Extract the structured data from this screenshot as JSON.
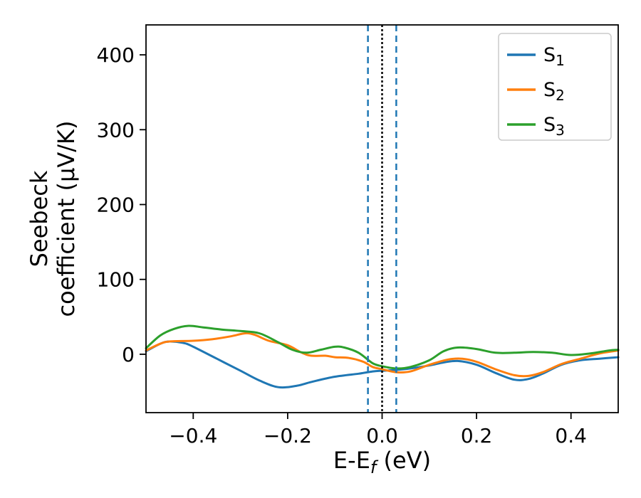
{
  "chart_data": {
    "type": "line",
    "title": "",
    "xlabel": {
      "prefix": "E-E",
      "sub": "f",
      "suffix": " (eV)"
    },
    "ylabel_lines": [
      "Seebeck",
      "coefficient  (μV/K)"
    ],
    "xlim": [
      -0.5,
      0.5
    ],
    "ylim": [
      -78,
      440
    ],
    "xticks": [
      -0.4,
      -0.2,
      0.0,
      0.2,
      0.4
    ],
    "xtick_labels": [
      "−0.4",
      "−0.2",
      "0.0",
      "0.2",
      "0.4"
    ],
    "yticks": [
      0,
      100,
      200,
      300,
      400
    ],
    "ytick_labels": [
      "0",
      "100",
      "200",
      "300",
      "400"
    ],
    "grid": false,
    "legend_position": "upper right",
    "vlines": [
      {
        "x": -0.03,
        "color": "#1f77b4",
        "dash": "9 6",
        "width": 2.5
      },
      {
        "x": 0.0,
        "color": "#000000",
        "dash": "3 3",
        "width": 2.5
      },
      {
        "x": 0.03,
        "color": "#1f77b4",
        "dash": "9 6",
        "width": 2.5
      }
    ],
    "series": [
      {
        "name_main": "S",
        "name_sub": "1",
        "color": "#1f77b4",
        "points": [
          [
            -0.5,
            4
          ],
          [
            -0.47,
            14
          ],
          [
            -0.45,
            17
          ],
          [
            -0.42,
            15
          ],
          [
            -0.4,
            10
          ],
          [
            -0.35,
            -6
          ],
          [
            -0.3,
            -22
          ],
          [
            -0.26,
            -35
          ],
          [
            -0.22,
            -44
          ],
          [
            -0.18,
            -42
          ],
          [
            -0.15,
            -37
          ],
          [
            -0.1,
            -30
          ],
          [
            -0.05,
            -26
          ],
          [
            -0.02,
            -23
          ],
          [
            0.0,
            -22
          ],
          [
            0.03,
            -21
          ],
          [
            0.06,
            -19
          ],
          [
            0.1,
            -15
          ],
          [
            0.13,
            -11
          ],
          [
            0.16,
            -9
          ],
          [
            0.2,
            -14
          ],
          [
            0.24,
            -25
          ],
          [
            0.28,
            -34
          ],
          [
            0.31,
            -33
          ],
          [
            0.34,
            -26
          ],
          [
            0.38,
            -14
          ],
          [
            0.42,
            -8
          ],
          [
            0.46,
            -6
          ],
          [
            0.5,
            -4
          ]
        ]
      },
      {
        "name_main": "S",
        "name_sub": "2",
        "color": "#ff7f0e",
        "points": [
          [
            -0.5,
            5
          ],
          [
            -0.47,
            14
          ],
          [
            -0.45,
            17
          ],
          [
            -0.4,
            18
          ],
          [
            -0.36,
            20
          ],
          [
            -0.32,
            24
          ],
          [
            -0.29,
            28
          ],
          [
            -0.27,
            26
          ],
          [
            -0.24,
            18
          ],
          [
            -0.2,
            12
          ],
          [
            -0.17,
            2
          ],
          [
            -0.15,
            -2
          ],
          [
            -0.12,
            -2
          ],
          [
            -0.1,
            -4
          ],
          [
            -0.07,
            -5
          ],
          [
            -0.04,
            -10
          ],
          [
            -0.02,
            -17
          ],
          [
            0.0,
            -20
          ],
          [
            0.03,
            -24
          ],
          [
            0.06,
            -23
          ],
          [
            0.1,
            -14
          ],
          [
            0.14,
            -7
          ],
          [
            0.17,
            -6
          ],
          [
            0.2,
            -10
          ],
          [
            0.24,
            -20
          ],
          [
            0.28,
            -28
          ],
          [
            0.31,
            -29
          ],
          [
            0.34,
            -24
          ],
          [
            0.38,
            -13
          ],
          [
            0.42,
            -6
          ],
          [
            0.46,
            1
          ],
          [
            0.5,
            5
          ]
        ]
      },
      {
        "name_main": "S",
        "name_sub": "3",
        "color": "#2ca02c",
        "points": [
          [
            -0.5,
            8
          ],
          [
            -0.47,
            25
          ],
          [
            -0.44,
            34
          ],
          [
            -0.41,
            38
          ],
          [
            -0.38,
            36
          ],
          [
            -0.34,
            33
          ],
          [
            -0.3,
            31
          ],
          [
            -0.26,
            28
          ],
          [
            -0.22,
            16
          ],
          [
            -0.19,
            6
          ],
          [
            -0.16,
            2
          ],
          [
            -0.13,
            6
          ],
          [
            -0.1,
            10
          ],
          [
            -0.08,
            9
          ],
          [
            -0.05,
            2
          ],
          [
            -0.02,
            -12
          ],
          [
            0.0,
            -16
          ],
          [
            0.03,
            -19
          ],
          [
            0.06,
            -17
          ],
          [
            0.1,
            -8
          ],
          [
            0.13,
            4
          ],
          [
            0.16,
            9
          ],
          [
            0.2,
            7
          ],
          [
            0.24,
            2
          ],
          [
            0.28,
            2
          ],
          [
            0.32,
            3
          ],
          [
            0.36,
            2
          ],
          [
            0.4,
            -1
          ],
          [
            0.44,
            1
          ],
          [
            0.48,
            5
          ],
          [
            0.5,
            6
          ]
        ]
      }
    ]
  }
}
